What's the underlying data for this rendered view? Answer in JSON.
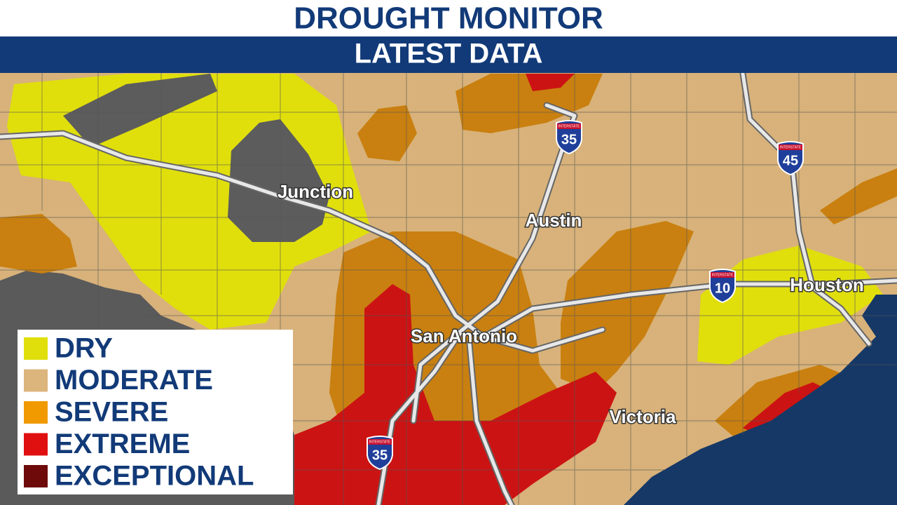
{
  "header": {
    "title": "DROUGHT MONITOR",
    "subtitle": "LATEST DATA"
  },
  "cities": [
    {
      "label": "Junction"
    },
    {
      "label": "Austin"
    },
    {
      "label": "San Antonio"
    },
    {
      "label": "Houston"
    },
    {
      "label": "Victoria"
    }
  ],
  "shields": {
    "banner": "INTERSTATE",
    "routes": [
      {
        "label": "35"
      },
      {
        "label": "45"
      },
      {
        "label": "10"
      },
      {
        "label": "35"
      }
    ]
  },
  "legend": [
    {
      "label": "DRY",
      "color": "#e0df0c"
    },
    {
      "label": "MODERATE",
      "color": "#dcb57c"
    },
    {
      "label": "SEVERE",
      "color": "#f09a00"
    },
    {
      "label": "EXTREME",
      "color": "#e01010"
    },
    {
      "label": "EXCEPTIONAL",
      "color": "#6e0a0a"
    }
  ]
}
